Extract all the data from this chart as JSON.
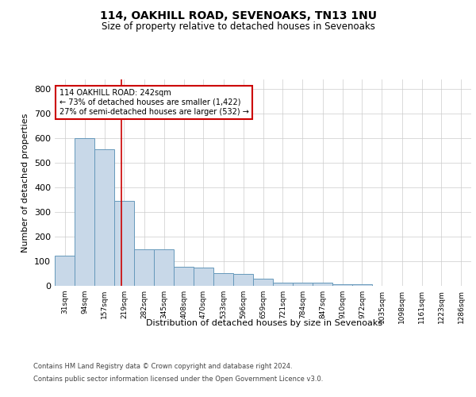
{
  "title": "114, OAKHILL ROAD, SEVENOAKS, TN13 1NU",
  "subtitle": "Size of property relative to detached houses in Sevenoaks",
  "xlabel": "Distribution of detached houses by size in Sevenoaks",
  "ylabel": "Number of detached properties",
  "footer_line1": "Contains HM Land Registry data © Crown copyright and database right 2024.",
  "footer_line2": "Contains public sector information licensed under the Open Government Licence v3.0.",
  "bar_color": "#c8d8e8",
  "bar_edge_color": "#6699bb",
  "grid_color": "#cccccc",
  "background_color": "#ffffff",
  "annotation_line1": "114 OAKHILL ROAD: 242sqm",
  "annotation_line2": "← 73% of detached houses are smaller (1,422)",
  "annotation_line3": "27% of semi-detached houses are larger (532) →",
  "annotation_box_color": "#ffffff",
  "annotation_border_color": "#cc0000",
  "vline_color": "#cc0000",
  "property_size": 242,
  "categories": [
    "31sqm",
    "94sqm",
    "157sqm",
    "219sqm",
    "282sqm",
    "345sqm",
    "408sqm",
    "470sqm",
    "533sqm",
    "596sqm",
    "659sqm",
    "721sqm",
    "784sqm",
    "847sqm",
    "910sqm",
    "972sqm",
    "1035sqm",
    "1098sqm",
    "1161sqm",
    "1223sqm",
    "1286sqm"
  ],
  "bin_edges": [
    31,
    94,
    157,
    219,
    282,
    345,
    408,
    470,
    533,
    596,
    659,
    721,
    784,
    847,
    910,
    972,
    1035,
    1098,
    1161,
    1223,
    1286
  ],
  "values": [
    122,
    600,
    557,
    346,
    150,
    148,
    77,
    75,
    51,
    50,
    30,
    14,
    14,
    12,
    5,
    8,
    0,
    0,
    0,
    0
  ],
  "ylim": [
    0,
    840
  ],
  "yticks": [
    0,
    100,
    200,
    300,
    400,
    500,
    600,
    700,
    800
  ]
}
